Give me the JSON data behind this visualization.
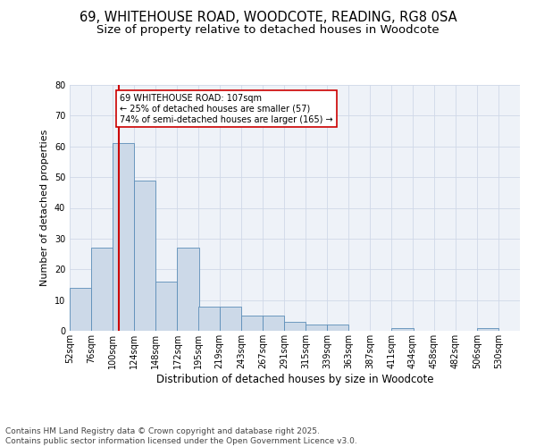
{
  "title_line1": "69, WHITEHOUSE ROAD, WOODCOTE, READING, RG8 0SA",
  "title_line2": "Size of property relative to detached houses in Woodcote",
  "xlabel": "Distribution of detached houses by size in Woodcote",
  "ylabel": "Number of detached properties",
  "bar_color": "#ccd9e8",
  "bar_edge_color": "#5b8db8",
  "grid_color": "#d0d8e8",
  "background_color": "#eef2f8",
  "vline_x": 107,
  "vline_color": "#cc0000",
  "annotation_text": "69 WHITEHOUSE ROAD: 107sqm\n← 25% of detached houses are smaller (57)\n74% of semi-detached houses are larger (165) →",
  "annotation_box_edge": "#cc0000",
  "categories": [
    "52sqm",
    "76sqm",
    "100sqm",
    "124sqm",
    "148sqm",
    "172sqm",
    "195sqm",
    "219sqm",
    "243sqm",
    "267sqm",
    "291sqm",
    "315sqm",
    "339sqm",
    "363sqm",
    "387sqm",
    "411sqm",
    "434sqm",
    "458sqm",
    "482sqm",
    "506sqm",
    "530sqm"
  ],
  "bin_edges": [
    52,
    76,
    100,
    124,
    148,
    172,
    195,
    219,
    243,
    267,
    291,
    315,
    339,
    363,
    387,
    411,
    434,
    458,
    482,
    506,
    530
  ],
  "bin_width": 24,
  "values": [
    14,
    27,
    61,
    49,
    16,
    27,
    8,
    8,
    5,
    5,
    3,
    2,
    2,
    0,
    0,
    1,
    0,
    0,
    0,
    1,
    0
  ],
  "ylim": [
    0,
    80
  ],
  "yticks": [
    0,
    10,
    20,
    30,
    40,
    50,
    60,
    70,
    80
  ],
  "footer_text": "Contains HM Land Registry data © Crown copyright and database right 2025.\nContains public sector information licensed under the Open Government Licence v3.0.",
  "footer_fontsize": 6.5,
  "title_fontsize1": 10.5,
  "title_fontsize2": 9.5,
  "annot_fontsize": 7,
  "xlabel_fontsize": 8.5,
  "ylabel_fontsize": 8,
  "tick_fontsize": 7
}
